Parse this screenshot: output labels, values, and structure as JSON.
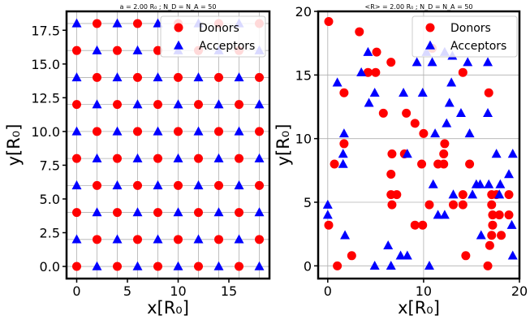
{
  "figure": {
    "background": "#ffffff",
    "donor_color": "#ff0000",
    "acceptor_color": "#0000ff",
    "grid_color": "#b0b0b0"
  },
  "chart_data": [
    {
      "type": "scatter",
      "title": "a = 2.00 R₀ ;  N_D = N_A = 50",
      "xlabel": "x[R₀]",
      "ylabel": "y[R₀]",
      "xlim": [
        -1,
        19
      ],
      "ylim": [
        -0.9,
        18.9
      ],
      "xticks": [
        0,
        5,
        10,
        15
      ],
      "yticks": [
        0,
        2.5,
        5,
        7.5,
        10,
        12.5,
        15,
        17.5
      ],
      "xtick_labels": [
        "0",
        "5",
        "10",
        "15"
      ],
      "ytick_labels": [
        "0.0",
        "2.5",
        "5.0",
        "7.5",
        "10.0",
        "12.5",
        "15.0",
        "17.5"
      ],
      "grid_x": [
        0,
        2,
        4,
        6,
        8,
        10,
        12,
        14,
        16,
        18
      ],
      "grid_y": [
        0,
        2,
        4,
        6,
        8,
        10,
        12,
        14,
        16,
        18
      ],
      "grid": true,
      "legend": "top-right",
      "series": [
        {
          "name": "Donors",
          "marker": "circle",
          "color": "#ff0000",
          "points": [
            [
              0,
              0
            ],
            [
              4,
              0
            ],
            [
              8,
              0
            ],
            [
              12,
              0
            ],
            [
              16,
              0
            ],
            [
              2,
              2
            ],
            [
              6,
              2
            ],
            [
              10,
              2
            ],
            [
              14,
              2
            ],
            [
              18,
              2
            ],
            [
              0,
              4
            ],
            [
              4,
              4
            ],
            [
              8,
              4
            ],
            [
              12,
              4
            ],
            [
              16,
              4
            ],
            [
              2,
              6
            ],
            [
              6,
              6
            ],
            [
              10,
              6
            ],
            [
              14,
              6
            ],
            [
              18,
              6
            ],
            [
              0,
              8
            ],
            [
              4,
              8
            ],
            [
              8,
              8
            ],
            [
              12,
              8
            ],
            [
              16,
              8
            ],
            [
              2,
              10
            ],
            [
              6,
              10
            ],
            [
              10,
              10
            ],
            [
              14,
              10
            ],
            [
              18,
              10
            ],
            [
              0,
              12
            ],
            [
              4,
              12
            ],
            [
              8,
              12
            ],
            [
              12,
              12
            ],
            [
              16,
              12
            ],
            [
              2,
              14
            ],
            [
              6,
              14
            ],
            [
              10,
              14
            ],
            [
              14,
              14
            ],
            [
              18,
              14
            ],
            [
              0,
              16
            ],
            [
              4,
              16
            ],
            [
              8,
              16
            ],
            [
              12,
              16
            ],
            [
              16,
              16
            ],
            [
              2,
              18
            ],
            [
              6,
              18
            ],
            [
              10,
              18
            ],
            [
              14,
              18
            ],
            [
              18,
              18
            ]
          ]
        },
        {
          "name": "Acceptors",
          "marker": "triangle",
          "color": "#0000ff",
          "points": [
            [
              2,
              0
            ],
            [
              6,
              0
            ],
            [
              10,
              0
            ],
            [
              14,
              0
            ],
            [
              18,
              0
            ],
            [
              0,
              2
            ],
            [
              4,
              2
            ],
            [
              8,
              2
            ],
            [
              12,
              2
            ],
            [
              16,
              2
            ],
            [
              2,
              4
            ],
            [
              6,
              4
            ],
            [
              10,
              4
            ],
            [
              14,
              4
            ],
            [
              18,
              4
            ],
            [
              0,
              6
            ],
            [
              4,
              6
            ],
            [
              8,
              6
            ],
            [
              12,
              6
            ],
            [
              16,
              6
            ],
            [
              2,
              8
            ],
            [
              6,
              8
            ],
            [
              10,
              8
            ],
            [
              14,
              8
            ],
            [
              18,
              8
            ],
            [
              0,
              10
            ],
            [
              4,
              10
            ],
            [
              8,
              10
            ],
            [
              12,
              10
            ],
            [
              16,
              10
            ],
            [
              2,
              12
            ],
            [
              6,
              12
            ],
            [
              10,
              12
            ],
            [
              14,
              12
            ],
            [
              18,
              12
            ],
            [
              0,
              14
            ],
            [
              4,
              14
            ],
            [
              8,
              14
            ],
            [
              12,
              14
            ],
            [
              16,
              14
            ],
            [
              2,
              16
            ],
            [
              6,
              16
            ],
            [
              10,
              16
            ],
            [
              14,
              16
            ],
            [
              18,
              16
            ],
            [
              0,
              18
            ],
            [
              4,
              18
            ],
            [
              8,
              18
            ],
            [
              12,
              18
            ],
            [
              16,
              18
            ]
          ]
        }
      ]
    },
    {
      "type": "scatter",
      "title": "<R> = 2.00 R₀ ;  N_D = N_A = 50",
      "xlabel": "x[R₀]",
      "ylabel": "y[R₀]",
      "xlim": [
        -1,
        20
      ],
      "ylim": [
        -1,
        20
      ],
      "xticks": [
        0,
        10,
        20
      ],
      "yticks": [
        0,
        5,
        10,
        15,
        20
      ],
      "xtick_labels": [
        "0",
        "10",
        "20"
      ],
      "ytick_labels": [
        "0",
        "5",
        "10",
        "15",
        "20"
      ],
      "grid_x": [
        0,
        10,
        20
      ],
      "grid_y": [
        0,
        5,
        10,
        15,
        20
      ],
      "grid": true,
      "legend": "top-right",
      "series": [
        {
          "name": "Donors",
          "marker": "circle",
          "color": "#ff0000",
          "points": [
            [
              0.1,
              19.2
            ],
            [
              0.1,
              3.2
            ],
            [
              0.7,
              8
            ],
            [
              1,
              0
            ],
            [
              1.7,
              13.6
            ],
            [
              1.7,
              9.6
            ],
            [
              2.5,
              0.8
            ],
            [
              3.3,
              18.4
            ],
            [
              4.2,
              15.2
            ],
            [
              5.1,
              16.8
            ],
            [
              5,
              15.2
            ],
            [
              5.8,
              12
            ],
            [
              6.6,
              16
            ],
            [
              6.7,
              8.8
            ],
            [
              6.6,
              7.2
            ],
            [
              6.6,
              5.6
            ],
            [
              7.2,
              5.6
            ],
            [
              6.7,
              4.8
            ],
            [
              8.2,
              12
            ],
            [
              8,
              8.8
            ],
            [
              9.1,
              11.2
            ],
            [
              9.1,
              3.2
            ],
            [
              9.9,
              3.2
            ],
            [
              9.8,
              8
            ],
            [
              10,
              10.4
            ],
            [
              10.6,
              4.8
            ],
            [
              11.5,
              8
            ],
            [
              12.2,
              9.6
            ],
            [
              12.1,
              8.8
            ],
            [
              12.1,
              8
            ],
            [
              13.1,
              4.8
            ],
            [
              14.1,
              5.6
            ],
            [
              14.1,
              4.8
            ],
            [
              14.1,
              15.2
            ],
            [
              14.8,
              8
            ],
            [
              14.4,
              0.8
            ],
            [
              16.8,
              13.6
            ],
            [
              16.7,
              0
            ],
            [
              16.9,
              1.6
            ],
            [
              17.1,
              2.4
            ],
            [
              17.2,
              3.2
            ],
            [
              17.2,
              4
            ],
            [
              17.1,
              4.8
            ],
            [
              17.1,
              5.6
            ],
            [
              17.6,
              5.6
            ],
            [
              17.9,
              4
            ],
            [
              18.1,
              2.4
            ],
            [
              18.9,
              5.6
            ],
            [
              18.9,
              4
            ],
            [
              10.9,
              17.1
            ]
          ]
        },
        {
          "name": "Acceptors",
          "marker": "triangle",
          "color": "#0000ff",
          "points": [
            [
              0,
              4
            ],
            [
              0,
              4.8
            ],
            [
              1,
              14.4
            ],
            [
              1.6,
              8.8
            ],
            [
              1.6,
              8
            ],
            [
              1.7,
              10.4
            ],
            [
              1.8,
              2.4
            ],
            [
              3.5,
              15.2
            ],
            [
              4.2,
              16.8
            ],
            [
              4.3,
              12.8
            ],
            [
              4.9,
              13.6
            ],
            [
              4.9,
              0
            ],
            [
              6.3,
              1.6
            ],
            [
              6.6,
              0
            ],
            [
              7.6,
              0.8
            ],
            [
              7.9,
              13.6
            ],
            [
              8.3,
              0.8
            ],
            [
              8.3,
              8.8
            ],
            [
              9.3,
              16
            ],
            [
              9.9,
              13.6
            ],
            [
              10.3,
              16.8
            ],
            [
              10.6,
              0
            ],
            [
              10.9,
              16
            ],
            [
              11.2,
              10.4
            ],
            [
              11.5,
              4
            ],
            [
              12.4,
              11.2
            ],
            [
              12.2,
              4
            ],
            [
              12.7,
              12.8
            ],
            [
              13.1,
              5.6
            ],
            [
              14.6,
              16
            ],
            [
              15.1,
              5.6
            ],
            [
              15.5,
              6.4
            ],
            [
              15.9,
              6.4
            ],
            [
              16,
              2.4
            ],
            [
              16.7,
              12
            ],
            [
              16.7,
              16
            ],
            [
              16.8,
              6.4
            ],
            [
              17.9,
              5.6
            ],
            [
              18,
              6.4
            ],
            [
              18.9,
              7.2
            ],
            [
              19.3,
              8.8
            ],
            [
              19.2,
              3.2
            ],
            [
              19.3,
              0.8
            ],
            [
              17.6,
              8.8
            ],
            [
              12.9,
              14.4
            ],
            [
              14.8,
              10.4
            ],
            [
              12.2,
              16.8
            ],
            [
              13.9,
              12
            ],
            [
              11,
              6.4
            ],
            [
              13,
              16.5
            ]
          ]
        }
      ]
    }
  ]
}
